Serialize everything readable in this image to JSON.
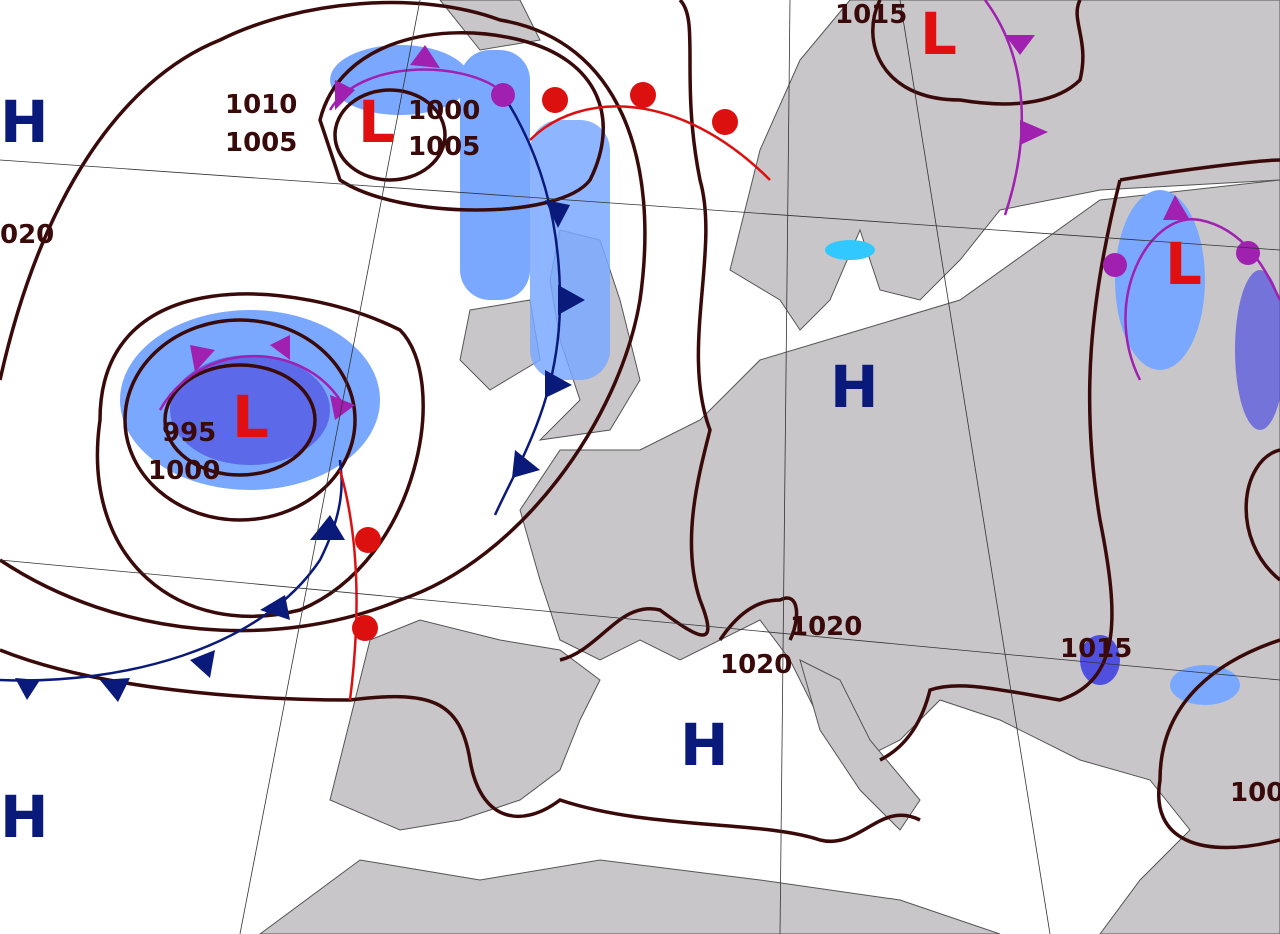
{
  "colors": {
    "sea": "#ffffff",
    "land": "#c8c6c8",
    "isobar": "#3a0a0a",
    "high": "#0a1a7a",
    "low": "#e01010",
    "cold_front": "#0a1a7a",
    "warm_front": "#dd1010",
    "occluded_front": "#a020b0",
    "precip_light": "#7aa8ff",
    "precip_heavy": "#5050e0"
  },
  "pressure_centers": [
    {
      "type": "H",
      "label": "H"
    },
    {
      "type": "L",
      "label": "L"
    },
    {
      "type": "L",
      "label": "L"
    },
    {
      "type": "L",
      "label": "L"
    },
    {
      "type": "H",
      "label": "H"
    },
    {
      "type": "L",
      "label": "L"
    },
    {
      "type": "H",
      "label": "H"
    },
    {
      "type": "H",
      "label": "H"
    }
  ],
  "isobar_labels": [
    "1010",
    "1005",
    "1000",
    "1005",
    "020",
    "1000",
    "995",
    "1015",
    "1020",
    "1020",
    "1015",
    "100"
  ]
}
